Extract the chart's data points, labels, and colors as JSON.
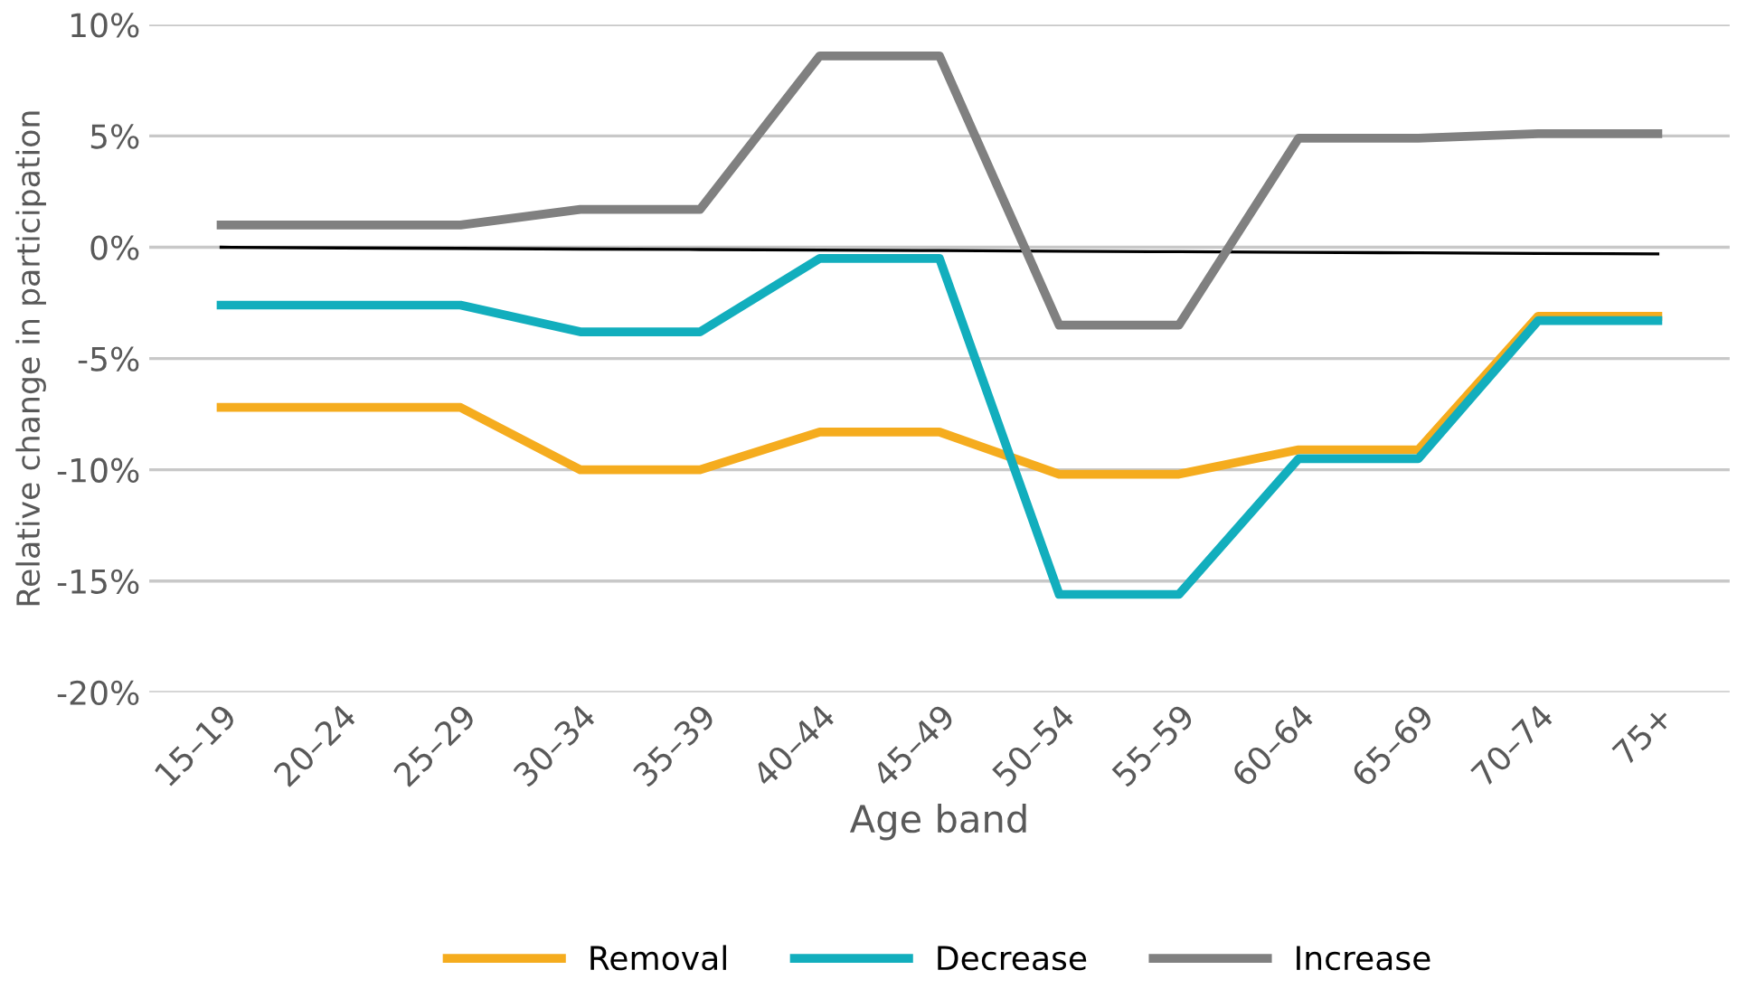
{
  "chart_data": {
    "type": "line",
    "xlabel": "Age band",
    "ylabel": "Relative change in participation",
    "categories": [
      "15–19",
      "20–24",
      "25–29",
      "30–34",
      "35–39",
      "40–44",
      "45–49",
      "50–54",
      "55–59",
      "60–64",
      "65–69",
      "70–74",
      "75+"
    ],
    "series": [
      {
        "name": "Removal",
        "color": "#f5ac1e",
        "values": [
          -7.2,
          -7.2,
          -7.2,
          -10.0,
          -10.0,
          -8.3,
          -8.3,
          -10.2,
          -10.2,
          -9.1,
          -9.1,
          -3.1,
          -3.1
        ]
      },
      {
        "name": "Decrease",
        "color": "#12aebd",
        "values": [
          -2.6,
          -2.6,
          -2.6,
          -3.8,
          -3.8,
          -0.5,
          -0.5,
          -15.6,
          -15.6,
          -9.5,
          -9.5,
          -3.3,
          -3.3
        ]
      },
      {
        "name": "Increase",
        "color": "#808080",
        "values": [
          1.0,
          1.0,
          1.0,
          1.7,
          1.7,
          8.6,
          8.6,
          -3.5,
          -3.5,
          4.9,
          4.9,
          5.1,
          5.1
        ]
      },
      {
        "type": "line",
        "color": "#000000",
        "values": [
          0.0,
          -0.03,
          -0.05,
          -0.08,
          -0.1,
          -0.13,
          -0.15,
          -0.18,
          -0.2,
          -0.23,
          -0.25,
          -0.28,
          -0.3
        ]
      }
    ],
    "ylim": [
      -20,
      10
    ],
    "yticks": [
      {
        "value": -20,
        "label": "-20%"
      },
      {
        "value": -15,
        "label": "-15%"
      },
      {
        "value": -10,
        "label": "-10%"
      },
      {
        "value": -5,
        "label": "-5%"
      },
      {
        "value": 0,
        "label": "0%"
      },
      {
        "value": 5,
        "label": "5%"
      },
      {
        "value": 10,
        "label": "10%"
      }
    ],
    "grid": "y",
    "legend": "bottom",
    "marker": "none",
    "line_style": "solid"
  }
}
